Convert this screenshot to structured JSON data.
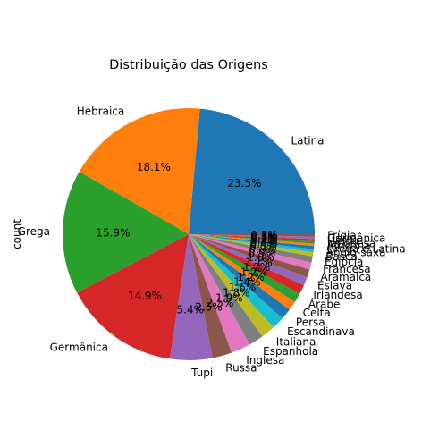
{
  "chart_data": {
    "type": "pie",
    "title": "Distribuição das Origens",
    "ylabel": "count",
    "categories": [
      "Latina",
      "Hebraica",
      "Grega",
      "Germânica",
      "Tupi",
      "Russa",
      "Inglesa",
      "Espanhola",
      "Italiana",
      "Escandinava",
      "Persa",
      "Celta",
      "Árabe",
      "Irlandesa",
      "Eslava",
      "Aramaica",
      "Francesa",
      "Egípcia",
      "Basca",
      "Anglo-saxã",
      "Grega e Latina",
      "Africana",
      "Japonesa",
      "Hindu",
      "Germânica",
      "Frígia"
    ],
    "values": [
      23.5,
      18.1,
      15.9,
      14.9,
      5.4,
      2.5,
      2.5,
      1.9,
      1.8,
      1.6,
      1.4,
      1.2,
      1.2,
      1.2,
      1.1,
      1.0,
      0.9,
      0.8,
      0.5,
      0.4,
      0.4,
      0.3,
      0.3,
      0.3,
      0.3,
      0.3
    ],
    "percent_labels": [
      "23.5%",
      "18.1%",
      "15.9%",
      "14.9%",
      "5.4%",
      "2.5%",
      "2.5%",
      "1.9%",
      "1.8%",
      "1.6%",
      "1.4%",
      "1.2%",
      "1.2%",
      "1.2%",
      "1.1%",
      "1.0%",
      "0.9%",
      "0.8%",
      "0.5%",
      "0.4%",
      "0.4%",
      "0.3%",
      "0.3%",
      "0.3%",
      "0.3%",
      "0.3%"
    ],
    "colors": [
      "#1f77b4",
      "#ff7f0e",
      "#2ca02c",
      "#d62728",
      "#9467bd",
      "#8c564b",
      "#e377c2",
      "#7f7f7f",
      "#bcbd22",
      "#17becf",
      "#1f77b4",
      "#ff7f0e",
      "#2ca02c",
      "#d62728",
      "#9467bd",
      "#8c564b",
      "#e377c2",
      "#7f7f7f",
      "#bcbd22",
      "#17becf",
      "#1f77b4",
      "#ff7f0e",
      "#2ca02c",
      "#d62728",
      "#9467bd",
      "#8c564b"
    ],
    "start_angle_deg": 0,
    "direction": "counterclockwise"
  }
}
